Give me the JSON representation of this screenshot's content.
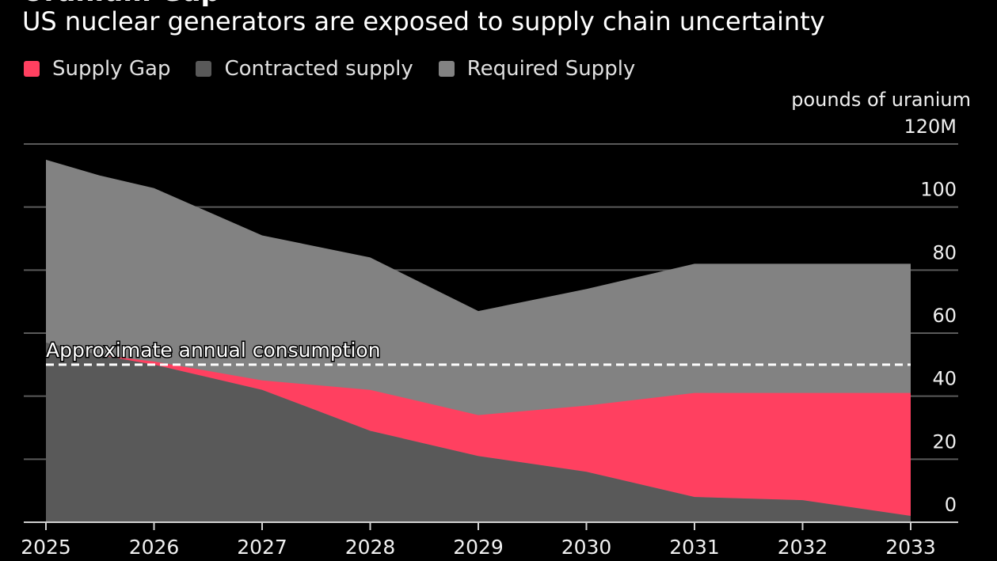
{
  "header": {
    "cut_title": "Uranium Gap",
    "subtitle": "US nuclear generators are exposed to supply chain uncertainty"
  },
  "colors": {
    "background": "#000000",
    "supply_gap": "#ff4060",
    "contracted": "#595959",
    "required": "#828282",
    "grid": "#5a5a5a",
    "axis_text": "#f0f0f0"
  },
  "chart_data": {
    "type": "area",
    "title": "US nuclear generators are exposed to supply chain uncertainty",
    "x": [
      2025,
      2025.5,
      2026,
      2027,
      2028,
      2029,
      2030,
      2031,
      2032,
      2033
    ],
    "x_tick_labels": [
      "2025",
      "2026",
      "2027",
      "2028",
      "2029",
      "2030",
      "2031",
      "2032",
      "2033"
    ],
    "series": [
      {
        "name": "Supply Gap",
        "color": "#ff4060",
        "lower": [
          57,
          53,
          50,
          42,
          29,
          21,
          16,
          8,
          7,
          2
        ],
        "upper": [
          57,
          53,
          51,
          45,
          42,
          34,
          37,
          41,
          41,
          41
        ]
      },
      {
        "name": "Contracted supply",
        "color": "#595959",
        "values": [
          57,
          53,
          50,
          42,
          29,
          21,
          16,
          8,
          7,
          2
        ]
      },
      {
        "name": "Required Supply",
        "color": "#828282",
        "values": [
          115,
          110,
          106,
          91,
          84,
          67,
          74,
          82,
          82,
          82
        ]
      }
    ],
    "reference_line": {
      "label": "Approximate annual consumption",
      "value": 50
    },
    "y_axis": {
      "unit_label": "pounds of uranium",
      "ticks": [
        {
          "value": 120,
          "label": "120M"
        },
        {
          "value": 100,
          "label": "100"
        },
        {
          "value": 80,
          "label": "80"
        },
        {
          "value": 60,
          "label": "60"
        },
        {
          "value": 40,
          "label": "40"
        },
        {
          "value": 20,
          "label": "20"
        },
        {
          "value": 0,
          "label": "0"
        }
      ],
      "ylim": [
        0,
        120
      ],
      "position": "right"
    },
    "legend": {
      "placement": "top-left",
      "entries": [
        {
          "label": "Supply Gap",
          "color": "#ff4060"
        },
        {
          "label": "Contracted supply",
          "color": "#595959"
        },
        {
          "label": "Required Supply",
          "color": "#828282"
        }
      ]
    },
    "grid": true
  }
}
